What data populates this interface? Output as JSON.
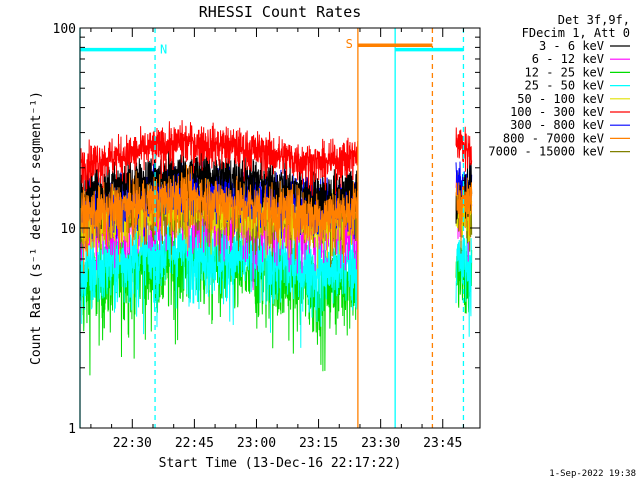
{
  "chart_data": {
    "type": "line",
    "title": "RHESSI Count Rates",
    "xlabel": "Start Time (13-Dec-16 22:17:22)",
    "ylabel": "Count Rate (s⁻¹ detector segment⁻¹)",
    "yscale": "log",
    "ylim": [
      1,
      100
    ],
    "xlim": [
      "22:17:22",
      "23:54:00"
    ],
    "x_ticks": [
      "22:30",
      "22:45",
      "23:00",
      "23:15",
      "23:30",
      "23:45"
    ],
    "y_ticks": [
      "1",
      "10",
      "100"
    ],
    "legend_header": [
      "Det 3f,9f,",
      "FDecim 1, Att 0"
    ],
    "legend_position": "top-right outside plot",
    "footer": "1-Sep-2022 19:38",
    "gaps": [
      [
        "23:24:30",
        "23:48:10"
      ]
    ],
    "series": [
      {
        "name": "3 - 6 keV",
        "color": "#000000",
        "values": [
          14.5,
          16.5,
          19,
          18.5,
          17,
          15.5,
          14.5,
          15,
          16,
          12,
          17.5
        ]
      },
      {
        "name": "6 - 12 keV",
        "color": "#ff00ff",
        "values": [
          9.5,
          10.5,
          12,
          11,
          10.5,
          10,
          10,
          10.5,
          10.5,
          13,
          13
        ]
      },
      {
        "name": "12 - 25 keV",
        "color": "#00dd00",
        "values": [
          5,
          6,
          7,
          6.5,
          6,
          5.5,
          5,
          5.5,
          6,
          6,
          5.5
        ]
      },
      {
        "name": "25 - 50 keV",
        "color": "#00ffff",
        "values": [
          6,
          6.8,
          8,
          7.5,
          7,
          6.5,
          6.2,
          6.5,
          7,
          7,
          6.5
        ]
      },
      {
        "name": "50 - 100 keV",
        "color": "#e0e000",
        "values": [
          11,
          12,
          14,
          13,
          12,
          11.5,
          11,
          11.5,
          12,
          14,
          12
        ]
      },
      {
        "name": "100 - 300 keV",
        "color": "#ff0000",
        "values": [
          21,
          23,
          27,
          26,
          24,
          22,
          21,
          22,
          23,
          28,
          24
        ]
      },
      {
        "name": "300 - 800 keV",
        "color": "#0000ff",
        "values": [
          13,
          14,
          16,
          15.5,
          15,
          14,
          13.5,
          13.5,
          14,
          17,
          15
        ]
      },
      {
        "name": "800 - 7000 keV",
        "color": "#ff8000",
        "values": [
          11.5,
          12.5,
          14.5,
          13.5,
          12.5,
          12,
          11.5,
          12,
          12.5,
          14,
          13
        ]
      },
      {
        "name": "7000 - 15000 keV",
        "color": "#808000",
        "values": [
          11,
          12,
          13,
          12.5,
          12,
          11.5,
          11,
          11.5,
          12,
          13,
          12
        ]
      }
    ],
    "sample_times": [
      "22:17:22",
      "22:27",
      "22:42",
      "22:52",
      "23:02",
      "23:10",
      "23:16",
      "23:20",
      "23:24",
      "23:48",
      "23:52"
    ],
    "flag_bars": [
      {
        "label": "N",
        "color": "#00ffff",
        "y": 78,
        "start": "22:17:22",
        "end": "22:35:30"
      },
      {
        "label": "S",
        "color": "#ff8000",
        "y": 82,
        "start": "23:24:30",
        "end": "23:42:30"
      },
      {
        "label": "",
        "color": "#00ffff",
        "y": 78,
        "start": "23:33:30",
        "end": "23:50:00"
      }
    ],
    "event_lines": [
      {
        "time": "22:17:22",
        "color": "#00ffff",
        "style": "solid"
      },
      {
        "time": "22:35:30",
        "color": "#00ffff",
        "style": "dashed"
      },
      {
        "time": "23:24:30",
        "color": "#ff8000",
        "style": "solid"
      },
      {
        "time": "23:33:30",
        "color": "#00ffff",
        "style": "solid"
      },
      {
        "time": "23:42:30",
        "color": "#ff8000",
        "style": "dashed"
      },
      {
        "time": "23:50:00",
        "color": "#00ffff",
        "style": "dashed"
      }
    ]
  }
}
